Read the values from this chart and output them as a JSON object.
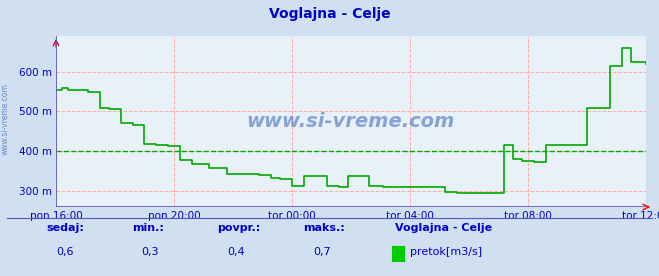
{
  "title": "Voglajna - Celje",
  "title_color": "#0000cc",
  "bg_color": "#d0e0f0",
  "plot_bg_color": "#e8f0f8",
  "grid_color_main": "#ffaaaa",
  "grid_color_avg": "#00aa00",
  "line_color": "#00aa00",
  "axis_color": "#5555bb",
  "xlabel_color": "#0000cc",
  "ylabel_color": "#0000cc",
  "watermark": "www.si-vreme.com",
  "watermark_color": "#1144aa",
  "ylim": [
    260,
    690
  ],
  "yticks": [
    300,
    400,
    500,
    600
  ],
  "ytick_labels": [
    "300 m",
    "400 m",
    "500 m",
    "600 m"
  ],
  "avg_line_y": 400,
  "xtick_labels": [
    "pon 16:00",
    "pon 20:00",
    "tor 00:00",
    "tor 04:00",
    "tor 08:00",
    "tor 12:00"
  ],
  "xtick_positions": [
    0.0,
    0.2,
    0.4,
    0.6,
    0.8,
    1.0
  ],
  "footer_labels": [
    "sedaj:",
    "min.:",
    "povpr.:",
    "maks.:"
  ],
  "footer_values": [
    "0,6",
    "0,3",
    "0,4",
    "0,7"
  ],
  "legend_station": "Voglajna - Celje",
  "legend_label": "pretok[m3/s]",
  "legend_color": "#00cc00",
  "time_points": [
    0.0,
    0.01,
    0.02,
    0.035,
    0.055,
    0.075,
    0.09,
    0.11,
    0.13,
    0.15,
    0.17,
    0.19,
    0.21,
    0.23,
    0.26,
    0.29,
    0.32,
    0.345,
    0.365,
    0.38,
    0.4,
    0.42,
    0.44,
    0.46,
    0.48,
    0.495,
    0.51,
    0.53,
    0.555,
    0.58,
    0.6,
    0.62,
    0.64,
    0.66,
    0.68,
    0.7,
    0.72,
    0.74,
    0.76,
    0.775,
    0.79,
    0.81,
    0.83,
    0.855,
    0.875,
    0.9,
    0.92,
    0.94,
    0.96,
    0.975,
    1.0
  ],
  "values": [
    555,
    558,
    555,
    555,
    548,
    510,
    507,
    472,
    465,
    418,
    415,
    413,
    378,
    368,
    358,
    343,
    342,
    340,
    333,
    330,
    313,
    338,
    338,
    313,
    310,
    338,
    338,
    313,
    310,
    310,
    310,
    310,
    310,
    297,
    295,
    295,
    295,
    295,
    415,
    380,
    375,
    372,
    415,
    415,
    415,
    510,
    510,
    615,
    660,
    625,
    620
  ]
}
